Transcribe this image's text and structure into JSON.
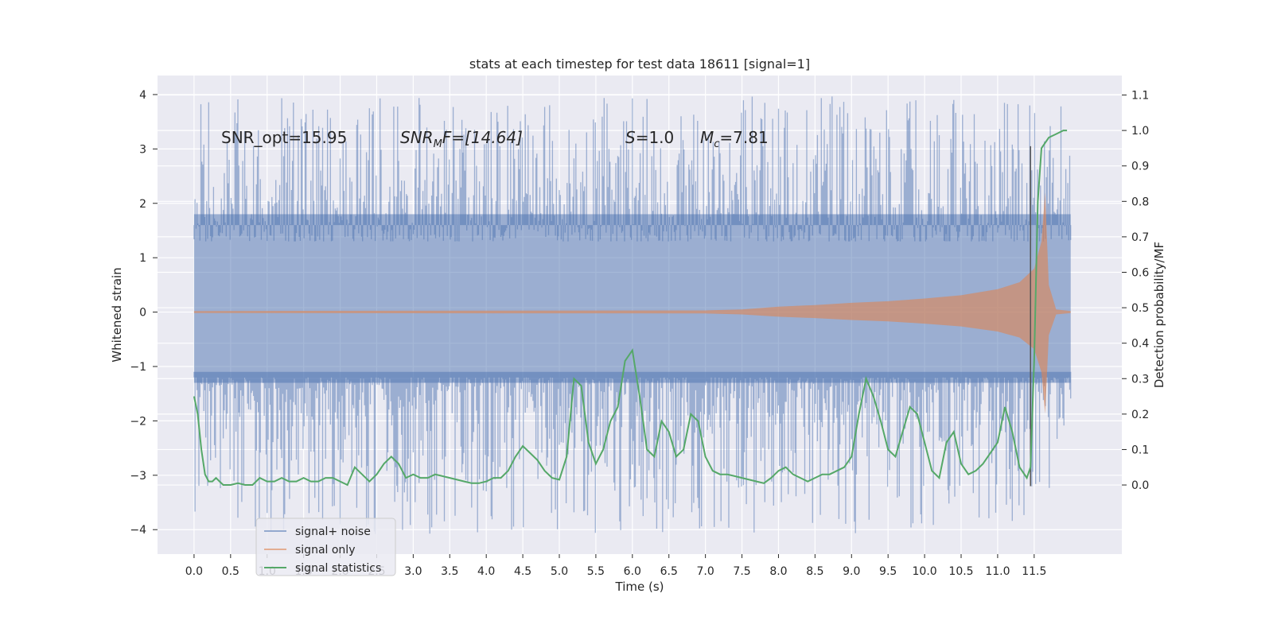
{
  "chart_data": {
    "type": "line",
    "title": "stats at each timestep for test data 18611 [signal=1]",
    "xlabel": "Time (s)",
    "ylabel": "Whitened strain",
    "y2label": "Detection probability/MF",
    "xlim": [
      -0.5,
      12.7
    ],
    "ylim": [
      -4.45,
      4.35
    ],
    "y2lim": [
      -0.195,
      1.155
    ],
    "grid": true,
    "legend_position": "lower-left",
    "colors": {
      "plot_bg": "#eaeaf2",
      "grid": "#ffffff",
      "noise": "#4c72b0",
      "signal": "#dd8452",
      "stat": "#55a868",
      "marker": "#555555",
      "text": "#262626"
    },
    "x_ticks": [
      {
        "value": 0.0,
        "label": "0.0"
      },
      {
        "value": 0.5,
        "label": "0.5"
      },
      {
        "value": 1.0,
        "label": "1.0"
      },
      {
        "value": 1.5,
        "label": "1.5"
      },
      {
        "value": 2.0,
        "label": "2.0"
      },
      {
        "value": 2.5,
        "label": "2.5"
      },
      {
        "value": 3.0,
        "label": "3.0"
      },
      {
        "value": 3.5,
        "label": "3.5"
      },
      {
        "value": 4.0,
        "label": "4.0"
      },
      {
        "value": 4.5,
        "label": "4.5"
      },
      {
        "value": 5.0,
        "label": "5.0"
      },
      {
        "value": 5.5,
        "label": "5.5"
      },
      {
        "value": 6.0,
        "label": "6.0"
      },
      {
        "value": 6.5,
        "label": "6.5"
      },
      {
        "value": 7.0,
        "label": "7.0"
      },
      {
        "value": 7.5,
        "label": "7.5"
      },
      {
        "value": 8.0,
        "label": "8.0"
      },
      {
        "value": 8.5,
        "label": "8.5"
      },
      {
        "value": 9.0,
        "label": "9.0"
      },
      {
        "value": 9.5,
        "label": "9.5"
      },
      {
        "value": 10.0,
        "label": "10.0"
      },
      {
        "value": 10.5,
        "label": "10.5"
      },
      {
        "value": 11.0,
        "label": "11.0"
      },
      {
        "value": 11.5,
        "label": "11.5"
      }
    ],
    "y_ticks": [
      {
        "value": 4,
        "label": "4"
      },
      {
        "value": 3,
        "label": "3"
      },
      {
        "value": 2,
        "label": "2"
      },
      {
        "value": 1,
        "label": "1"
      },
      {
        "value": 0,
        "label": "0"
      },
      {
        "value": -1,
        "label": "−1"
      },
      {
        "value": -2,
        "label": "−2"
      },
      {
        "value": -3,
        "label": "−3"
      },
      {
        "value": -4,
        "label": "−4"
      }
    ],
    "y2_ticks": [
      {
        "value": 1.1,
        "label": "1.1"
      },
      {
        "value": 1.0,
        "label": "1.0"
      },
      {
        "value": 0.9,
        "label": "0.9"
      },
      {
        "value": 0.8,
        "label": "0.8"
      },
      {
        "value": 0.7,
        "label": "0.7"
      },
      {
        "value": 0.6,
        "label": "0.6"
      },
      {
        "value": 0.5,
        "label": "0.5"
      },
      {
        "value": 0.4,
        "label": "0.4"
      },
      {
        "value": 0.3,
        "label": "0.3"
      },
      {
        "value": 0.2,
        "label": "0.2"
      },
      {
        "value": 0.1,
        "label": "0.1"
      },
      {
        "value": 0.0,
        "label": "0.0"
      }
    ],
    "annotations": {
      "snr_opt": "SNR_opt=15.95",
      "snr_mf_main": "SNR",
      "snr_mf_sub": "M",
      "snr_mf_rest": "F=[14.64]",
      "s_main": "S",
      "s_rest": "=1.0",
      "mc_main": "M",
      "mc_sub": "c",
      "mc_rest": "=7.81"
    },
    "legend": [
      {
        "label": "signal+ noise",
        "color": "#4c72b0",
        "opacity": 0.55
      },
      {
        "label": "signal only",
        "color": "#dd8452",
        "opacity": 0.6
      },
      {
        "label": "signal statistics",
        "color": "#55a868",
        "opacity": 1.0
      }
    ],
    "series": [
      {
        "name": "signal+ noise",
        "kind": "band",
        "x": [
          0.0,
          12.0
        ],
        "typical_upper": [
          1.8,
          1.8
        ],
        "typical_lower": [
          -1.3,
          -1.3
        ],
        "max_upper": 3.97,
        "min_lower": -4.08
      },
      {
        "name": "signal only",
        "kind": "envelope",
        "x": [
          0.0,
          7.0,
          7.5,
          8.0,
          8.5,
          9.0,
          9.5,
          10.0,
          10.5,
          11.0,
          11.3,
          11.5,
          11.6,
          11.65,
          11.7,
          11.8,
          12.0
        ],
        "amplitude": [
          0.02,
          0.03,
          0.05,
          0.1,
          0.13,
          0.17,
          0.2,
          0.25,
          0.31,
          0.42,
          0.55,
          0.8,
          1.3,
          2.2,
          0.5,
          0.05,
          0.02
        ]
      },
      {
        "name": "signal statistics",
        "kind": "line",
        "axis": "right",
        "x": [
          0.0,
          0.05,
          0.1,
          0.15,
          0.2,
          0.25,
          0.3,
          0.35,
          0.4,
          0.5,
          0.6,
          0.7,
          0.8,
          0.9,
          1.0,
          1.1,
          1.2,
          1.3,
          1.4,
          1.5,
          1.6,
          1.7,
          1.8,
          1.9,
          2.0,
          2.1,
          2.2,
          2.3,
          2.4,
          2.5,
          2.6,
          2.7,
          2.8,
          2.9,
          3.0,
          3.1,
          3.2,
          3.3,
          3.4,
          3.5,
          3.6,
          3.7,
          3.8,
          3.9,
          4.0,
          4.1,
          4.2,
          4.3,
          4.4,
          4.5,
          4.6,
          4.7,
          4.8,
          4.9,
          5.0,
          5.1,
          5.2,
          5.3,
          5.4,
          5.5,
          5.6,
          5.7,
          5.8,
          5.9,
          6.0,
          6.1,
          6.2,
          6.3,
          6.4,
          6.5,
          6.6,
          6.7,
          6.8,
          6.9,
          7.0,
          7.1,
          7.2,
          7.3,
          7.4,
          7.5,
          7.6,
          7.7,
          7.8,
          7.9,
          8.0,
          8.1,
          8.2,
          8.3,
          8.4,
          8.5,
          8.6,
          8.7,
          8.8,
          8.9,
          9.0,
          9.1,
          9.2,
          9.3,
          9.4,
          9.5,
          9.6,
          9.7,
          9.8,
          9.9,
          10.0,
          10.1,
          10.2,
          10.3,
          10.4,
          10.5,
          10.6,
          10.7,
          10.8,
          10.9,
          11.0,
          11.1,
          11.2,
          11.3,
          11.4,
          11.45,
          11.5,
          11.55,
          11.6,
          11.7,
          11.8,
          11.9,
          11.95
        ],
        "values": [
          0.25,
          0.2,
          0.1,
          0.03,
          0.01,
          0.01,
          0.02,
          0.01,
          0.0,
          0.0,
          0.005,
          0.0,
          0.0,
          0.02,
          0.01,
          0.01,
          0.02,
          0.01,
          0.01,
          0.02,
          0.01,
          0.01,
          0.02,
          0.02,
          0.01,
          0.0,
          0.05,
          0.03,
          0.01,
          0.03,
          0.06,
          0.08,
          0.06,
          0.02,
          0.03,
          0.02,
          0.02,
          0.03,
          0.025,
          0.02,
          0.015,
          0.01,
          0.005,
          0.005,
          0.01,
          0.02,
          0.02,
          0.04,
          0.08,
          0.11,
          0.09,
          0.07,
          0.04,
          0.02,
          0.015,
          0.08,
          0.3,
          0.28,
          0.12,
          0.06,
          0.1,
          0.18,
          0.22,
          0.35,
          0.38,
          0.25,
          0.1,
          0.08,
          0.18,
          0.15,
          0.08,
          0.1,
          0.2,
          0.18,
          0.08,
          0.04,
          0.03,
          0.03,
          0.025,
          0.02,
          0.015,
          0.01,
          0.005,
          0.02,
          0.04,
          0.05,
          0.03,
          0.02,
          0.01,
          0.02,
          0.03,
          0.03,
          0.04,
          0.05,
          0.08,
          0.2,
          0.3,
          0.25,
          0.18,
          0.1,
          0.08,
          0.15,
          0.22,
          0.2,
          0.12,
          0.04,
          0.02,
          0.12,
          0.15,
          0.06,
          0.03,
          0.04,
          0.06,
          0.09,
          0.12,
          0.22,
          0.15,
          0.05,
          0.02,
          0.05,
          0.35,
          0.8,
          0.95,
          0.98,
          0.99,
          1.0,
          1.0
        ]
      }
    ],
    "vertical_marker": {
      "x": 11.45,
      "y_top": 3.05,
      "y_bottom": -3.2
    }
  }
}
